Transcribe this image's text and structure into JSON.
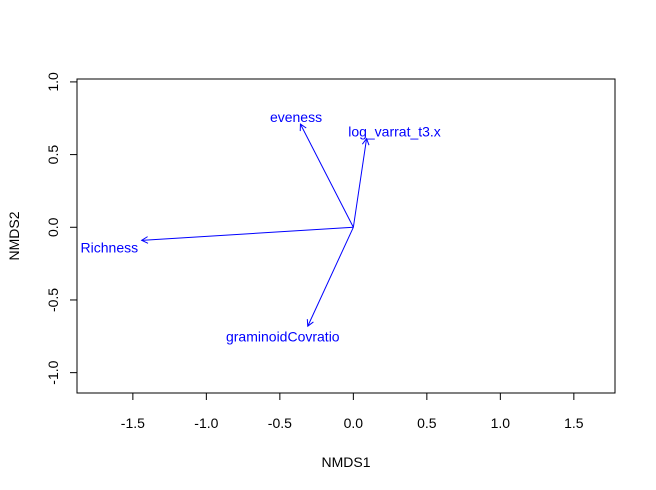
{
  "chart_data": {
    "type": "scatter",
    "subtype": "nmds-vector-biplot",
    "title": "",
    "xlabel": "NMDS1",
    "ylabel": "NMDS2",
    "xlim": [
      -1.88,
      1.78
    ],
    "ylim": [
      -1.14,
      1.02
    ],
    "x_ticks": [
      -1.5,
      -1.0,
      -0.5,
      0.0,
      0.5,
      1.0,
      1.5
    ],
    "x_tick_labels": [
      "-1.5",
      "-1.0",
      "-0.5",
      "0.0",
      "0.5",
      "1.0",
      "1.5"
    ],
    "y_ticks": [
      -1.0,
      -0.5,
      0.0,
      0.5,
      1.0
    ],
    "y_tick_labels": [
      "-1.0",
      "-0.5",
      "0.0",
      "0.5",
      "1.0"
    ],
    "grid": false,
    "legend": "none",
    "arrow_color": "#0000ff",
    "origin": [
      0.0,
      0.0
    ],
    "vectors": [
      {
        "label": "eveness",
        "x": -0.36,
        "y": 0.71,
        "label_x": -0.39,
        "label_y": 0.76
      },
      {
        "label": "log_varrat_t3.x",
        "x": 0.09,
        "y": 0.61,
        "label_x": 0.28,
        "label_y": 0.66
      },
      {
        "label": "Richness",
        "x": -1.44,
        "y": -0.09,
        "label_x": -1.66,
        "label_y": -0.14
      },
      {
        "label": "graminoidCovratio",
        "x": -0.31,
        "y": -0.68,
        "label_x": -0.48,
        "label_y": -0.75
      }
    ]
  }
}
